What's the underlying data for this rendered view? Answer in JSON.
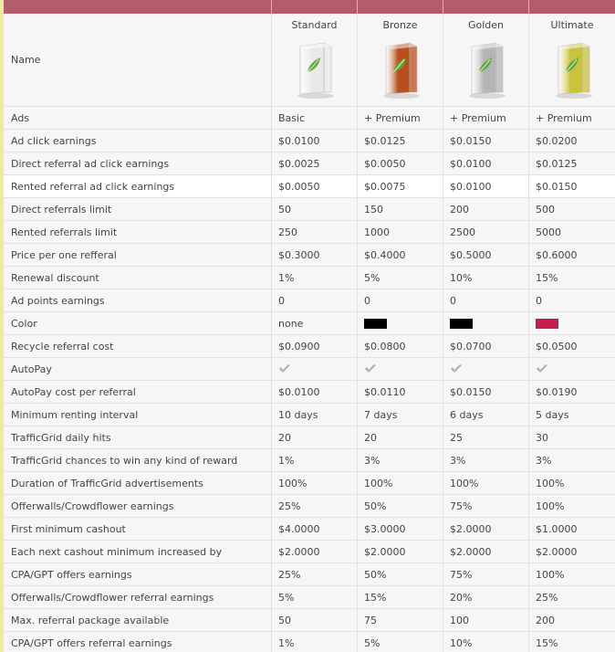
{
  "table": {
    "header_label": "Name",
    "highlighted_row": 3,
    "columns": [
      {
        "name": "Standard",
        "box_color": "#e9e9e9"
      },
      {
        "name": "Bronze",
        "box_color": "#b8501e"
      },
      {
        "name": "Golden",
        "box_color": "#b5b5b5"
      },
      {
        "name": "Ultimate",
        "box_color": "#c9c23a"
      }
    ],
    "rows": [
      {
        "label": "Ads",
        "cells": [
          "Basic",
          "+ Premium",
          "+ Premium",
          "+ Premium"
        ]
      },
      {
        "label": "Ad click earnings",
        "cells": [
          "$0.0100",
          "$0.0125",
          "$0.0150",
          "$0.0200"
        ]
      },
      {
        "label": "Direct referral ad click earnings",
        "cells": [
          "$0.0025",
          "$0.0050",
          "$0.0100",
          "$0.0125"
        ]
      },
      {
        "label": "Rented referral ad click earnings",
        "cells": [
          "$0.0050",
          "$0.0075",
          "$0.0100",
          "$0.0150"
        ]
      },
      {
        "label": "Direct referrals limit",
        "cells": [
          "50",
          "150",
          "200",
          "500"
        ]
      },
      {
        "label": "Rented referrals limit",
        "cells": [
          "250",
          "1000",
          "2500",
          "5000"
        ]
      },
      {
        "label": "Price per one refferal",
        "cells": [
          "$0.3000",
          "$0.4000",
          "$0.5000",
          "$0.6000"
        ]
      },
      {
        "label": "Renewal discount",
        "cells": [
          "1%",
          "5%",
          "10%",
          "15%"
        ]
      },
      {
        "label": "Ad points earnings",
        "cells": [
          "0",
          "0",
          "0",
          "0"
        ]
      },
      {
        "label": "Color",
        "cells": [
          "none",
          {
            "swatch": "#000000"
          },
          {
            "swatch": "#000000"
          },
          {
            "swatch": "#c41e50"
          }
        ]
      },
      {
        "label": "Recycle referral cost",
        "cells": [
          "$0.0900",
          "$0.0800",
          "$0.0700",
          "$0.0500"
        ]
      },
      {
        "label": "AutoPay",
        "cells": [
          {
            "check": true
          },
          {
            "check": true
          },
          {
            "check": true
          },
          {
            "check": true
          }
        ]
      },
      {
        "label": "AutoPay cost per referral",
        "cells": [
          "$0.0100",
          "$0.0110",
          "$0.0150",
          "$0.0190"
        ]
      },
      {
        "label": "Minimum renting interval",
        "cells": [
          "10 days",
          "7 days",
          "6 days",
          "5 days"
        ]
      },
      {
        "label": "TrafficGrid daily hits",
        "cells": [
          "20",
          "20",
          "25",
          "30"
        ]
      },
      {
        "label": "TrafficGrid chances to win any kind of reward",
        "cells": [
          "1%",
          "3%",
          "3%",
          "3%"
        ]
      },
      {
        "label": "Duration of TrafficGrid advertisements",
        "cells": [
          "100%",
          "100%",
          "100%",
          "100%"
        ]
      },
      {
        "label": "Offerwalls/Crowdflower earnings",
        "cells": [
          "25%",
          "50%",
          "75%",
          "100%"
        ]
      },
      {
        "label": "First minimum cashout",
        "cells": [
          "$4.0000",
          "$3.0000",
          "$2.0000",
          "$1.0000"
        ]
      },
      {
        "label": "Each next cashout minimum increased by",
        "cells": [
          "$2.0000",
          "$2.0000",
          "$2.0000",
          "$2.0000"
        ]
      },
      {
        "label": "CPA/GPT offers earnings",
        "cells": [
          "25%",
          "50%",
          "75%",
          "100%"
        ]
      },
      {
        "label": "Offerwalls/Crowdflower referral earnings",
        "cells": [
          "5%",
          "15%",
          "20%",
          "25%"
        ]
      },
      {
        "label": "Max. referral package available",
        "cells": [
          "50",
          "75",
          "100",
          "200"
        ]
      },
      {
        "label": "CPA/GPT offers referral earnings",
        "cells": [
          "1%",
          "5%",
          "10%",
          "15%"
        ]
      }
    ]
  }
}
